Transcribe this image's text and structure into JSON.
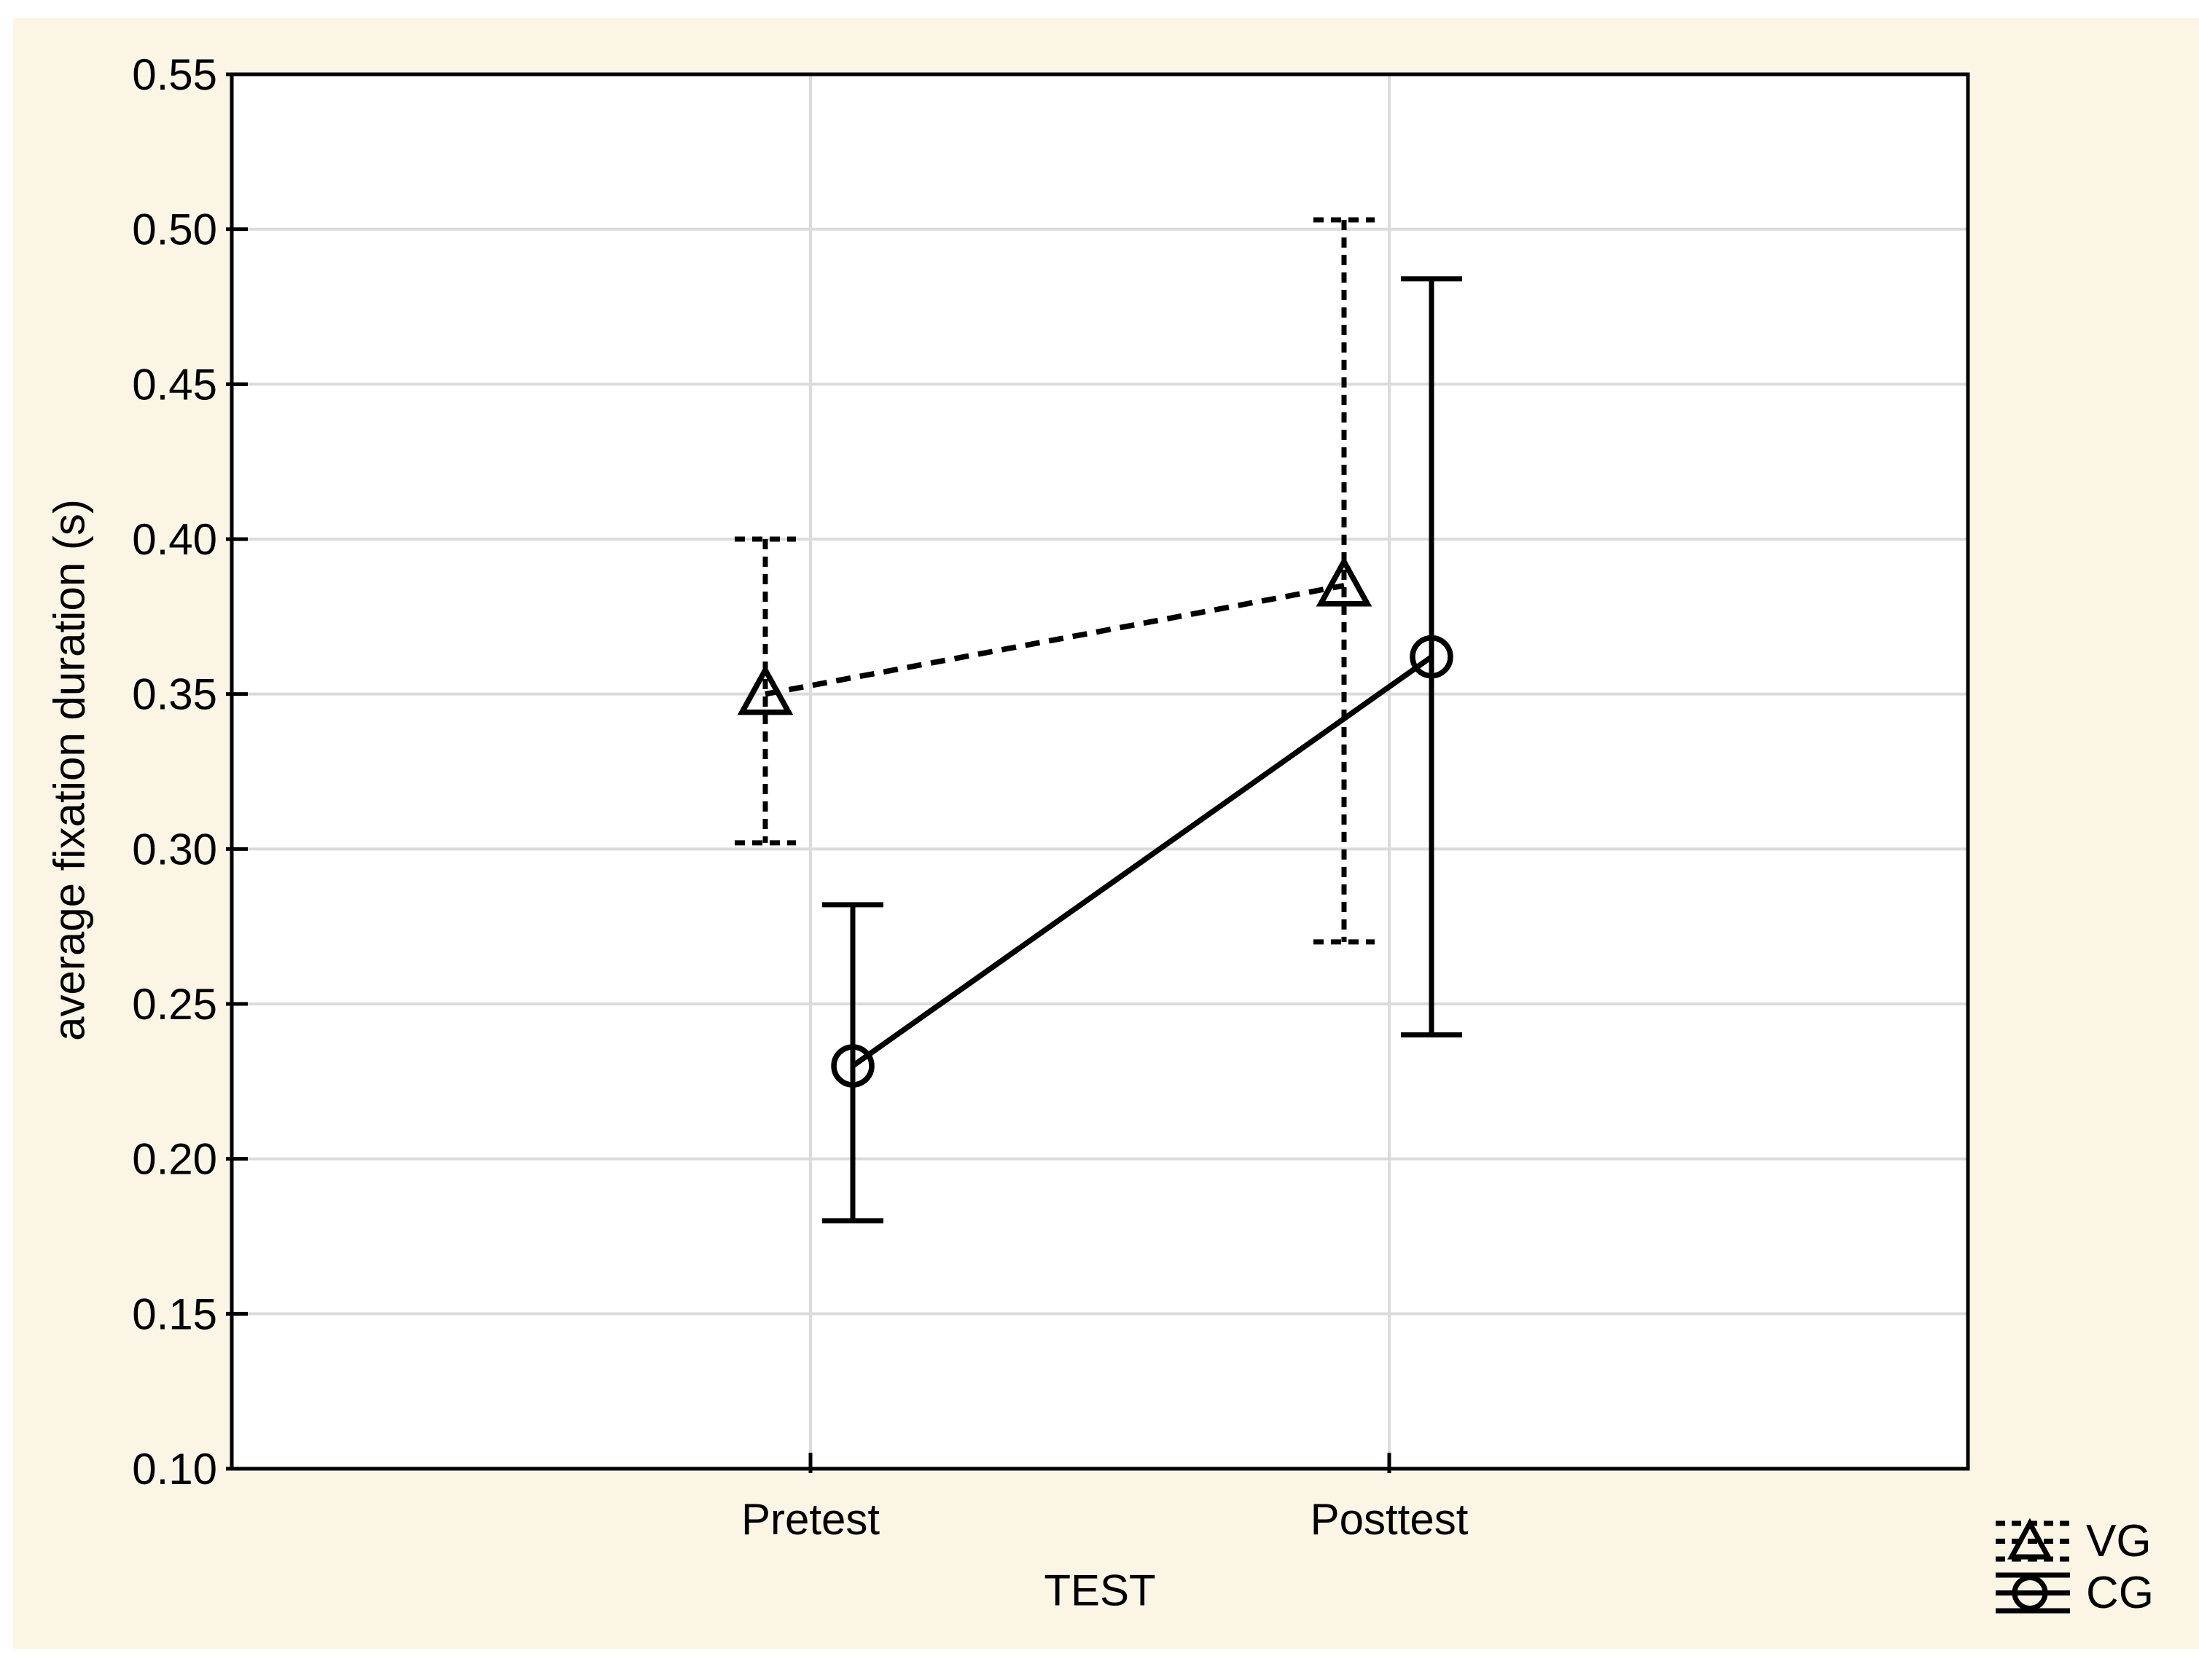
{
  "figure": {
    "background_color": "#FBF5E5",
    "plot_background_color": "#FFFFFF",
    "grid_color": "#DBDBDB",
    "axis_color": "#000000",
    "page_margin_color": "#FFFFFF"
  },
  "chart_data": {
    "type": "line",
    "subtype": "means-with-error-bars",
    "title": "",
    "xlabel": "TEST",
    "ylabel": "average fixation duration (s)",
    "categories": [
      "Pretest",
      "Posttest"
    ],
    "y_axis": {
      "min": 0.1,
      "max": 0.55,
      "tick_step": 0.05,
      "tick_labels": [
        "0.55",
        "0.50",
        "0.45",
        "0.40",
        "0.35",
        "0.30",
        "0.25",
        "0.20",
        "0.15",
        "0.10"
      ]
    },
    "grid": {
      "horizontal": true,
      "vertical_at_categories": true
    },
    "legend_position": "bottom-right",
    "series": [
      {
        "name": "VG",
        "marker": "triangle",
        "line_style": "dashed",
        "color": "#000000",
        "values": [
          0.35,
          0.385
        ],
        "error_low": [
          0.302,
          0.27
        ],
        "error_high": [
          0.4,
          0.503
        ]
      },
      {
        "name": "CG",
        "marker": "circle",
        "line_style": "solid",
        "color": "#000000",
        "values": [
          0.23,
          0.362
        ],
        "error_low": [
          0.18,
          0.24
        ],
        "error_high": [
          0.282,
          0.484
        ]
      }
    ]
  }
}
